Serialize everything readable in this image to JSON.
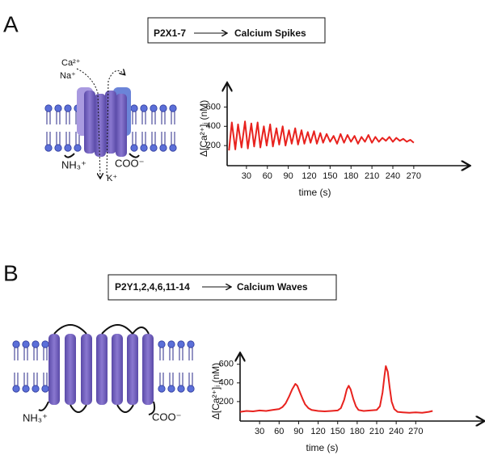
{
  "figure": {
    "panels": [
      {
        "label": "A",
        "box_left": "P2X1-7",
        "box_right": "Calcium Spikes",
        "ca": "Ca²⁺",
        "na": "Na⁺",
        "nh3": "NH₃⁺",
        "coo": "COO⁻",
        "k": "K⁺"
      },
      {
        "label": "B",
        "box_left": "P2Y1,2,4,6,11-14",
        "box_right": "Calcium Waves",
        "nh3": "NH₃⁺",
        "coo": "COO⁻"
      }
    ]
  },
  "chart_data": [
    {
      "type": "line",
      "xlabel": "time (s)",
      "ylabel": "Δ[Ca²⁺]ᵢ (nM)",
      "color": "#e8221e",
      "xlim": [
        0,
        349
      ],
      "ylim": [
        0,
        840
      ],
      "xticks": [
        30,
        60,
        90,
        120,
        150,
        180,
        210,
        240,
        270
      ],
      "yticks": [
        200,
        400,
        600
      ],
      "x": [
        5,
        9,
        14,
        18,
        23,
        28,
        32,
        37,
        41,
        46,
        50,
        55,
        59,
        64,
        68,
        73,
        77,
        82,
        86,
        91,
        95,
        100,
        104,
        109,
        113,
        118,
        122,
        127,
        131,
        136,
        140,
        145,
        150,
        155,
        160,
        165,
        170,
        175,
        180,
        185,
        190,
        195,
        200,
        205,
        210,
        215,
        220,
        225,
        230,
        235,
        240,
        245,
        250,
        255,
        260,
        265,
        270
      ],
      "values": [
        150,
        440,
        160,
        420,
        180,
        450,
        170,
        430,
        190,
        440,
        180,
        400,
        200,
        420,
        190,
        380,
        210,
        400,
        200,
        360,
        220,
        380,
        210,
        360,
        220,
        340,
        230,
        350,
        220,
        330,
        230,
        320,
        240,
        300,
        220,
        320,
        230,
        310,
        240,
        300,
        220,
        290,
        240,
        310,
        230,
        290,
        240,
        280,
        250,
        290,
        240,
        280,
        250,
        270,
        240,
        260,
        230
      ]
    },
    {
      "type": "line",
      "xlabel": "time (s)",
      "ylabel": "Δ[Ca²⁺]ᵢ (nM)",
      "color": "#e8221e",
      "xlim": [
        0,
        374
      ],
      "ylim": [
        0,
        710
      ],
      "xticks": [
        30,
        60,
        90,
        120,
        150,
        180,
        210,
        240,
        270
      ],
      "yticks": [
        200,
        400,
        600
      ],
      "x": [
        0,
        10,
        20,
        30,
        40,
        50,
        60,
        65,
        70,
        75,
        80,
        85,
        88,
        92,
        96,
        100,
        105,
        110,
        120,
        130,
        140,
        150,
        155,
        160,
        164,
        167,
        170,
        174,
        178,
        182,
        190,
        200,
        210,
        215,
        219,
        222,
        224,
        227,
        230,
        233,
        237,
        242,
        250,
        260,
        270,
        280,
        290,
        296
      ],
      "values": [
        90,
        100,
        95,
        105,
        100,
        110,
        120,
        140,
        180,
        250,
        330,
        390,
        370,
        300,
        230,
        170,
        130,
        110,
        100,
        95,
        100,
        105,
        130,
        220,
        330,
        370,
        330,
        230,
        150,
        110,
        100,
        105,
        110,
        150,
        300,
        480,
        580,
        520,
        350,
        200,
        120,
        90,
        85,
        80,
        85,
        80,
        90,
        100
      ]
    }
  ]
}
